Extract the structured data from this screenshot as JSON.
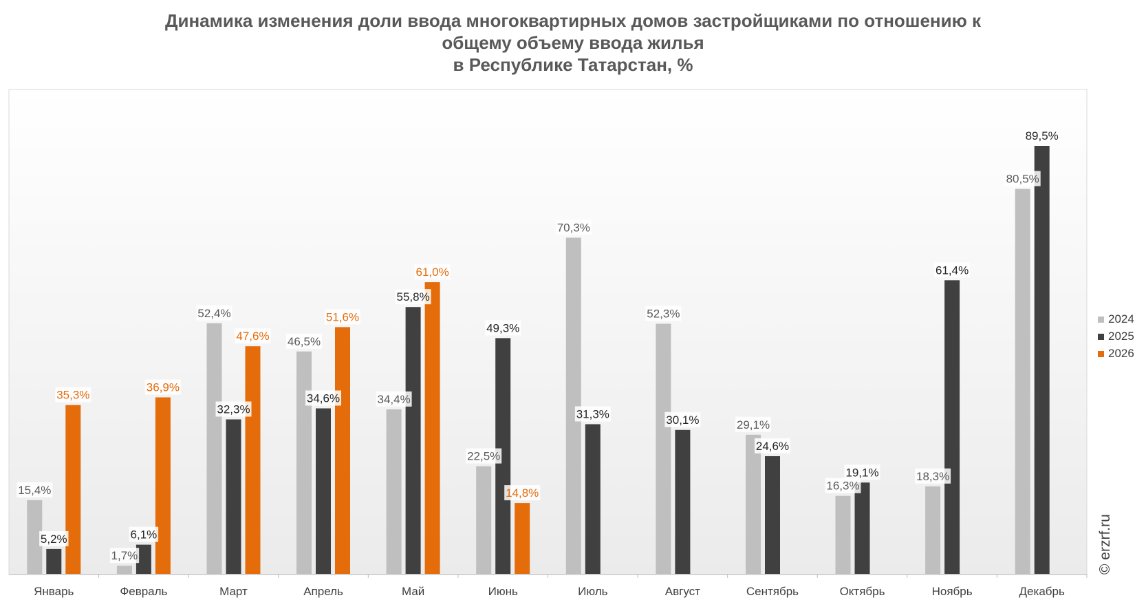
{
  "chart_data": {
    "type": "bar",
    "title": "Динамика изменения доли ввода многоквартирных домов застройщиками по отношению к общему объему ввода жилья в Республике Татарстан, %",
    "title_lines": [
      "Динамика изменения доли ввода многоквартирных домов застройщиками по отношению к",
      "общему объему ввода жилья",
      "в Республике Татарстан, %"
    ],
    "xlabel": "",
    "ylabel": "",
    "ylim": [
      0,
      100
    ],
    "grid": false,
    "legend_position": "right",
    "categories": [
      "Январь",
      "Февраль",
      "Март",
      "Апрель",
      "Май",
      "Июнь",
      "Июль",
      "Август",
      "Сентябрь",
      "Октябрь",
      "Ноябрь",
      "Декабрь"
    ],
    "series": [
      {
        "name": "2024",
        "color": "#bfbfbf",
        "label_color": "#595959",
        "values": [
          15.4,
          1.7,
          52.4,
          46.5,
          34.4,
          22.5,
          70.3,
          52.3,
          29.1,
          16.3,
          18.3,
          80.5
        ],
        "labels": [
          "15,4%",
          "1,7%",
          "52,4%",
          "46,5%",
          "34,4%",
          "22,5%",
          "70,3%",
          "52,3%",
          "29,1%",
          "16,3%",
          "18,3%",
          "80,5%"
        ]
      },
      {
        "name": "2025",
        "color": "#404040",
        "label_color": "#262626",
        "values": [
          5.2,
          6.1,
          32.3,
          34.6,
          55.8,
          49.3,
          31.3,
          30.1,
          24.6,
          19.1,
          61.4,
          89.5
        ],
        "labels": [
          "5,2%",
          "6,1%",
          "32,3%",
          "34,6%",
          "55,8%",
          "49,3%",
          "31,3%",
          "30,1%",
          "24,6%",
          "19,1%",
          "61,4%",
          "89,5%"
        ]
      },
      {
        "name": "2026",
        "color": "#e46c0a",
        "label_color": "#e46c0a",
        "values": [
          35.3,
          36.9,
          47.6,
          51.6,
          61.0,
          14.8,
          null,
          null,
          null,
          null,
          null,
          null
        ],
        "labels": [
          "35,3%",
          "36,9%",
          "47,6%",
          "51,6%",
          "61,0%",
          "14,8%",
          "",
          "",
          "",
          "",
          "",
          ""
        ]
      }
    ]
  },
  "watermark": "© erzrf.ru"
}
